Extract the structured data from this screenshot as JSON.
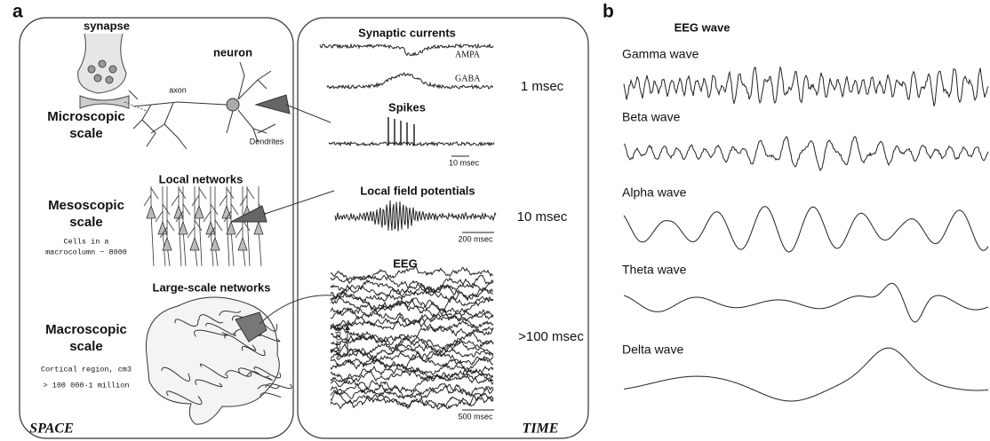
{
  "panel_a": {
    "label": "a",
    "space": {
      "synapse": "synapse",
      "neuron": "neuron",
      "axon": "axon",
      "dendrites": "Dendrites",
      "micro": {
        "title": [
          "Microscopic",
          "scale"
        ]
      },
      "local_networks": "Local networks",
      "meso": {
        "title": [
          "Mesoscopic",
          "scale"
        ],
        "note": [
          "Cells in a",
          "macrocolumn ~ 8000"
        ]
      },
      "large_scale_networks": "Large-scale networks",
      "macro": {
        "title": [
          "Macroscopic",
          "scale"
        ],
        "note": [
          "Cortical region, cm3",
          "> 100 000-1 million"
        ]
      },
      "axis_label": "SPACE"
    },
    "time": {
      "synaptic_currents": {
        "title": "Synaptic currents",
        "ampa": "AMPA",
        "gaba": "GABA",
        "timescale": "1 msec"
      },
      "spikes": {
        "title": "Spikes",
        "scale_bar": "10 msec"
      },
      "lfp": {
        "title": "Local field potentials",
        "scale_bar": "200 msec",
        "timescale": "10 msec"
      },
      "eeg": {
        "title": "EEG",
        "electrodes": "electrodes",
        "scale_bar": "500 msec",
        "timescale": ">100 msec"
      },
      "axis_label": "TIME"
    }
  },
  "panel_b": {
    "label": "b",
    "title": "EEG wave",
    "waves": [
      "Gamma wave",
      "Beta wave",
      "Alpha wave",
      "Theta wave",
      "Delta wave"
    ]
  }
}
